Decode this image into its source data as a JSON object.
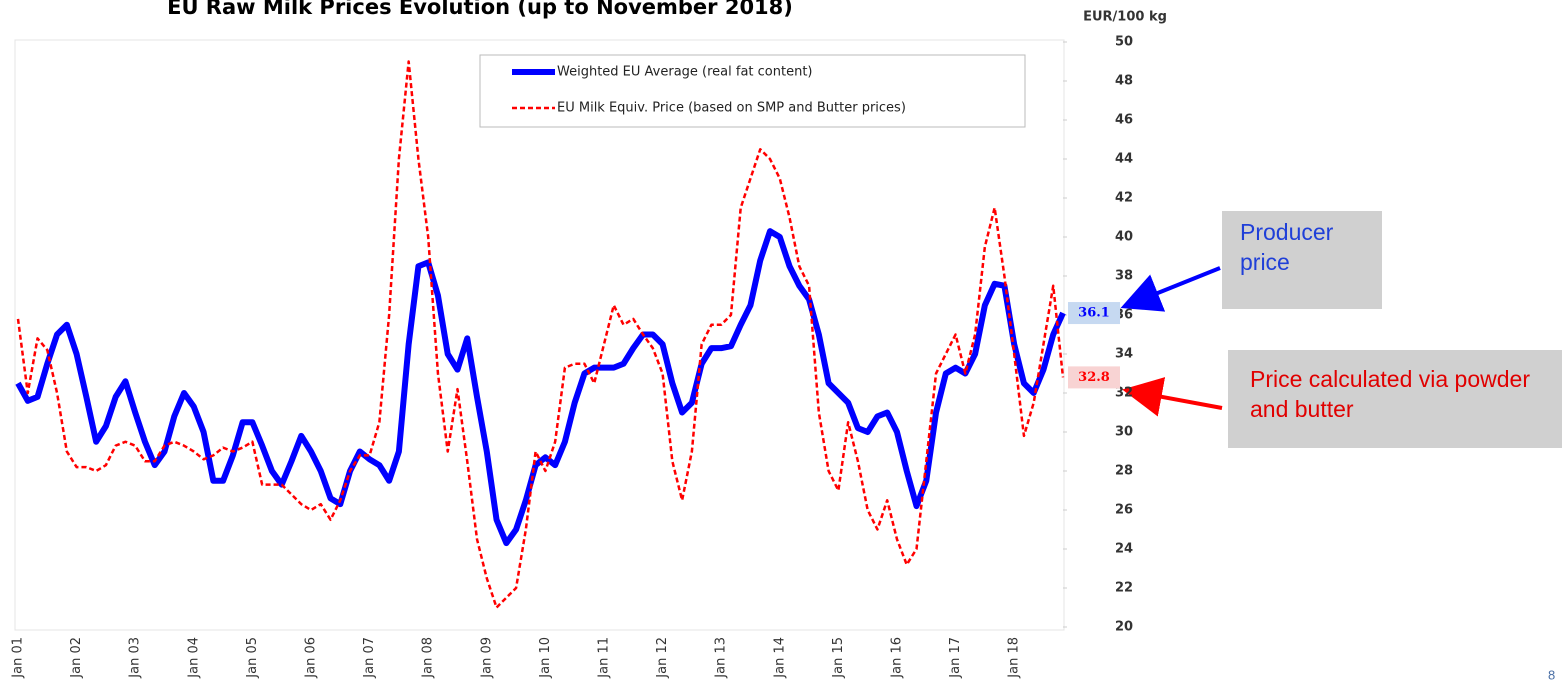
{
  "chart_data": {
    "type": "line",
    "title": "EU Raw Milk Prices Evolution (up to  November 2018)",
    "y_label": "EUR/100 kg",
    "categories": [
      "Jan 01",
      null,
      null,
      null,
      null,
      null,
      "Jan 02",
      null,
      null,
      null,
      null,
      null,
      "Jan 03",
      null,
      null,
      null,
      null,
      null,
      "Jan 04",
      null,
      null,
      null,
      null,
      null,
      "Jan 05",
      null,
      null,
      null,
      null,
      null,
      "Jan 06",
      null,
      null,
      null,
      null,
      null,
      "Jan 07",
      null,
      null,
      null,
      null,
      null,
      "Jan 08",
      null,
      null,
      null,
      null,
      null,
      "Jan 09",
      null,
      null,
      null,
      null,
      null,
      "Jan 10",
      null,
      null,
      null,
      null,
      null,
      "Jan 11",
      null,
      null,
      null,
      null,
      null,
      "Jan 12",
      null,
      null,
      null,
      null,
      null,
      "Jan 13",
      null,
      null,
      null,
      null,
      null,
      "Jan 14",
      null,
      null,
      null,
      null,
      null,
      "Jan 15",
      null,
      null,
      null,
      null,
      null,
      "Jan 16",
      null,
      null,
      null,
      null,
      null,
      "Jan 17",
      null,
      null,
      null,
      null,
      null,
      "Jan 18",
      null,
      null,
      null,
      null,
      null
    ],
    "series": [
      {
        "name": "Weighted EU Average (real fat content)",
        "color": "#0000ff",
        "style": "solid",
        "values": [
          32.5,
          31.6,
          31.8,
          33.5,
          35.0,
          35.5,
          34.0,
          31.8,
          29.5,
          30.3,
          31.8,
          32.6,
          31.0,
          29.5,
          28.3,
          29.0,
          30.8,
          32.0,
          31.3,
          30.0,
          27.5,
          27.5,
          28.8,
          30.5,
          30.5,
          29.3,
          28.0,
          27.3,
          28.5,
          29.8,
          29.0,
          28.0,
          26.6,
          26.3,
          28.0,
          29.0,
          28.6,
          28.3,
          27.5,
          29.0,
          34.5,
          38.5,
          38.7,
          37.0,
          34.0,
          33.2,
          34.8,
          31.8,
          29.0,
          25.5,
          24.3,
          25.0,
          26.5,
          28.3,
          28.7,
          28.3,
          29.5,
          31.5,
          33.0,
          33.3,
          33.3,
          33.3,
          33.5,
          34.3,
          35.0,
          35.0,
          34.5,
          32.5,
          31.0,
          31.5,
          33.5,
          34.3,
          34.3,
          34.4,
          35.5,
          36.5,
          38.8,
          40.3,
          40.0,
          38.5,
          37.5,
          36.8,
          35.0,
          32.5,
          32.0,
          31.5,
          30.2,
          30.0,
          30.8,
          31.0,
          30.0,
          28.0,
          26.2,
          27.5,
          31.0,
          33.0,
          33.3,
          33.0,
          34.0,
          36.5,
          37.6,
          37.5,
          34.5,
          32.5,
          32.0,
          33.2,
          35.0,
          36.1
        ]
      },
      {
        "name": "EU Milk Equiv. Price (based on SMP and Butter prices)",
        "color": "#ff0000",
        "style": "dashed",
        "values": [
          35.8,
          32.0,
          34.8,
          34.2,
          32.0,
          29.0,
          28.2,
          28.2,
          28.0,
          28.3,
          29.3,
          29.5,
          29.3,
          28.5,
          28.5,
          29.3,
          29.5,
          29.3,
          29.0,
          28.6,
          28.8,
          29.2,
          29.0,
          29.2,
          29.5,
          27.3,
          27.3,
          27.3,
          26.8,
          26.3,
          26.0,
          26.3,
          25.5,
          26.5,
          28.0,
          28.8,
          28.8,
          30.5,
          36.0,
          44.0,
          49.0,
          44.0,
          40.0,
          33.0,
          29.0,
          32.2,
          28.5,
          24.5,
          22.5,
          21.0,
          21.5,
          22.0,
          25.0,
          29.0,
          28.0,
          29.5,
          33.3,
          33.5,
          33.5,
          32.5,
          34.5,
          36.5,
          35.5,
          35.8,
          35.0,
          34.3,
          33.0,
          28.5,
          26.5,
          29.0,
          34.5,
          35.5,
          35.5,
          36.0,
          41.5,
          43.0,
          44.5,
          44.0,
          43.0,
          41.0,
          38.5,
          37.5,
          31.0,
          28.0,
          27.0,
          30.5,
          28.5,
          26.0,
          25.0,
          26.5,
          24.5,
          23.2,
          24.0,
          28.5,
          33.0,
          34.0,
          35.0,
          33.0,
          35.0,
          39.5,
          41.5,
          38.0,
          34.0,
          29.8,
          31.5,
          34.5,
          37.5,
          32.8
        ]
      }
    ],
    "ylim": [
      20,
      50
    ],
    "yticks": [
      20,
      22,
      24,
      26,
      28,
      30,
      32,
      34,
      36,
      38,
      40,
      42,
      44,
      46,
      48,
      50
    ],
    "y_axis_side": "right",
    "annotations": [
      "Producer price",
      "Price calculated via powder and butter"
    ],
    "page_number": "8"
  }
}
